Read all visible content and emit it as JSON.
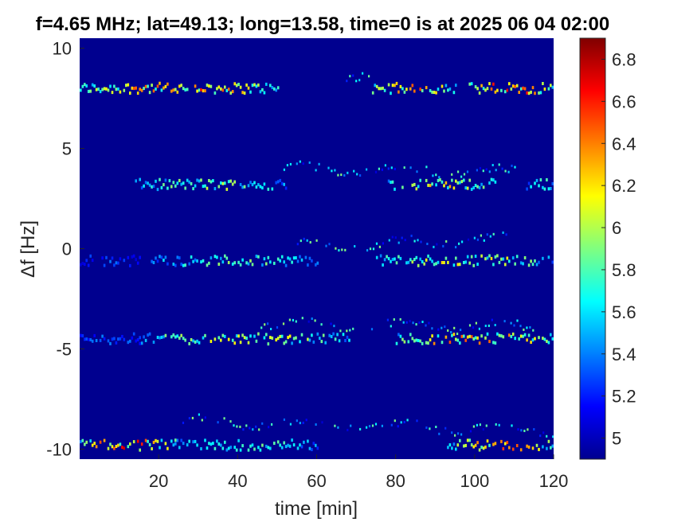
{
  "chart_data": {
    "type": "heatmap",
    "title": "f=4.65 MHz;  lat=49.13; long=13.58, time=0 is at 2025 06 04 02:00",
    "xlabel": "time [min]",
    "ylabel": "Δf [Hz]",
    "xlim": [
      0,
      120
    ],
    "ylim": [
      -10.5,
      10.5
    ],
    "x_ticks": [
      20,
      40,
      60,
      80,
      100,
      120
    ],
    "x_tick_labels": [
      "20",
      "40",
      "60",
      "80",
      "100",
      "120"
    ],
    "y_ticks": [
      -10,
      -5,
      0,
      5,
      10
    ],
    "y_tick_labels": [
      "-10",
      "-5",
      "0",
      "5",
      "10"
    ],
    "colorbar": {
      "limits": [
        4.9,
        6.9
      ],
      "ticks": [
        5,
        5.2,
        5.4,
        5.6,
        5.8,
        6,
        6.2,
        6.4,
        6.6,
        6.8
      ],
      "tick_labels": [
        "5",
        "5.2",
        "5.4",
        "5.6",
        "5.8",
        "6",
        "6.2",
        "6.4",
        "6.6",
        "6.8"
      ],
      "colormap": "jet"
    },
    "background_value": 4.9,
    "bands": [
      {
        "y_center": 8.0,
        "segments": [
          {
            "x": [
              0,
              50
            ],
            "peak": 6.7
          },
          {
            "x": [
              74,
              95
            ],
            "peak": 6.7
          },
          {
            "x": [
              98,
              120
            ],
            "peak": 6.8
          }
        ],
        "branch": {
          "x": [
            65,
            73
          ],
          "y": [
            8.6,
            8.8
          ]
        }
      },
      {
        "y_center": 3.2,
        "segments": [
          {
            "x": [
              14,
              52
            ],
            "peak": 6.1
          },
          {
            "x": [
              78,
              105
            ],
            "peak": 6.4
          },
          {
            "x": [
              113,
              120
            ],
            "peak": 5.9
          }
        ],
        "branch": {
          "x": [
            50,
            110
          ],
          "y": [
            4.0,
            3.8
          ]
        }
      },
      {
        "y_center": -0.6,
        "segments": [
          {
            "x": [
              0,
              15
            ],
            "peak": 5.4
          },
          {
            "x": [
              18,
              60
            ],
            "peak": 6.0
          },
          {
            "x": [
              75,
              120
            ],
            "peak": 6.3
          }
        ],
        "branch": {
          "x": [
            55,
            110
          ],
          "y": [
            0.1,
            0.5
          ]
        }
      },
      {
        "y_center": -4.5,
        "segments": [
          {
            "x": [
              0,
              15
            ],
            "peak": 5.5
          },
          {
            "x": [
              15,
              68
            ],
            "peak": 6.3
          },
          {
            "x": [
              80,
              120
            ],
            "peak": 6.6
          }
        ],
        "branch": {
          "x": [
            45,
            115
          ],
          "y": [
            -3.8,
            -3.9
          ]
        }
      },
      {
        "y_center": -9.8,
        "segments": [
          {
            "x": [
              0,
              24
            ],
            "peak": 6.8
          },
          {
            "x": [
              24,
              60
            ],
            "peak": 6.0
          },
          {
            "x": [
              93,
              120
            ],
            "peak": 6.6
          }
        ],
        "branch": {
          "x": [
            26,
            120
          ],
          "y": [
            -8.6,
            -9.1
          ]
        }
      }
    ]
  }
}
